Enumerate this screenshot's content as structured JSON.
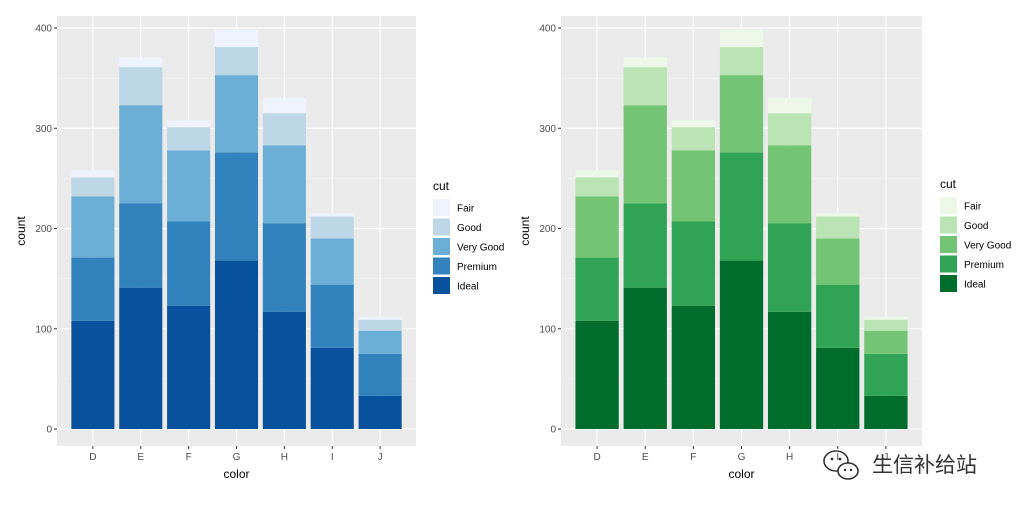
{
  "watermark": {
    "text": "生信补给站",
    "icon": "wechat-icon"
  },
  "chart_data": [
    {
      "type": "bar",
      "stacked": true,
      "title": "",
      "xlabel": "color",
      "ylabel": "count",
      "ylim": [
        0,
        400
      ],
      "yticks": [
        0,
        100,
        200,
        300,
        400
      ],
      "grid": true,
      "legend_title": "cut",
      "legend_position": "right",
      "categories": [
        "D",
        "E",
        "F",
        "G",
        "H",
        "I",
        "J"
      ],
      "series": [
        {
          "name": "Fair",
          "color": "#eff3ff",
          "values": [
            7,
            10,
            7,
            17,
            15,
            3,
            3
          ]
        },
        {
          "name": "Good",
          "color": "#bdd7e7",
          "values": [
            19,
            38,
            23,
            28,
            32,
            22,
            11
          ]
        },
        {
          "name": "Very Good",
          "color": "#6baed6",
          "values": [
            61,
            98,
            71,
            77,
            78,
            46,
            23
          ]
        },
        {
          "name": "Premium",
          "color": "#3182bd",
          "values": [
            63,
            84,
            84,
            108,
            88,
            63,
            42
          ]
        },
        {
          "name": "Ideal",
          "color": "#08519c",
          "values": [
            108,
            141,
            123,
            168,
            117,
            81,
            33
          ]
        }
      ]
    },
    {
      "type": "bar",
      "stacked": true,
      "title": "",
      "xlabel": "color",
      "ylabel": "count",
      "ylim": [
        0,
        400
      ],
      "yticks": [
        0,
        100,
        200,
        300,
        400
      ],
      "grid": true,
      "legend_title": "cut",
      "legend_position": "right",
      "categories": [
        "D",
        "E",
        "F",
        "G",
        "H",
        "I",
        "J"
      ],
      "series": [
        {
          "name": "Fair",
          "color": "#edf8e9",
          "values": [
            7,
            10,
            7,
            17,
            15,
            3,
            3
          ]
        },
        {
          "name": "Good",
          "color": "#bae4b3",
          "values": [
            19,
            38,
            23,
            28,
            32,
            22,
            11
          ]
        },
        {
          "name": "Very Good",
          "color": "#74c476",
          "values": [
            61,
            98,
            71,
            77,
            78,
            46,
            23
          ]
        },
        {
          "name": "Premium",
          "color": "#31a354",
          "values": [
            63,
            84,
            84,
            108,
            88,
            63,
            42
          ]
        },
        {
          "name": "Ideal",
          "color": "#006d2c",
          "values": [
            108,
            141,
            123,
            168,
            117,
            81,
            33
          ]
        }
      ]
    }
  ]
}
